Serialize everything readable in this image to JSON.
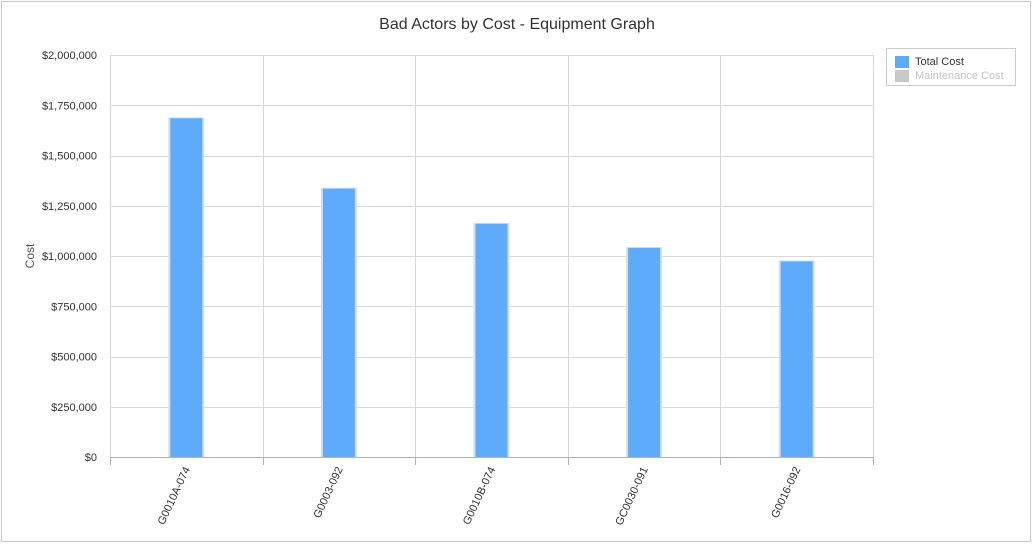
{
  "chart_data": {
    "type": "bar",
    "title": "Bad Actors by Cost - Equipment Graph",
    "xlabel": "",
    "ylabel": "Cost",
    "categories": [
      "G0010A-074",
      "G0003-092",
      "G0010B-074",
      "GC0030-091",
      "G0016-092"
    ],
    "series": [
      {
        "name": "Total Cost",
        "color": "#5eabfc",
        "values": [
          1690000,
          1340000,
          1165000,
          1045000,
          978000
        ]
      },
      {
        "name": "Maintenance Cost",
        "color": "#c8c8c8",
        "values": [
          0,
          0,
          0,
          0,
          0
        ]
      }
    ],
    "ylim": [
      0,
      2000000
    ],
    "yticks": [
      "$0",
      "$250,000",
      "$500,000",
      "$750,000",
      "$1,000,000",
      "$1,250,000",
      "$1,500,000",
      "$1,750,000",
      "$2,000,000"
    ],
    "grid": true,
    "legend_position": "top-right"
  },
  "legend": {
    "items": [
      {
        "label": "Total Cost",
        "color": "#5eabfc",
        "text_color": "#333333"
      },
      {
        "label": "Maintenance Cost",
        "color": "#c8c8c8",
        "text_color": "#c2c2c2"
      }
    ]
  }
}
